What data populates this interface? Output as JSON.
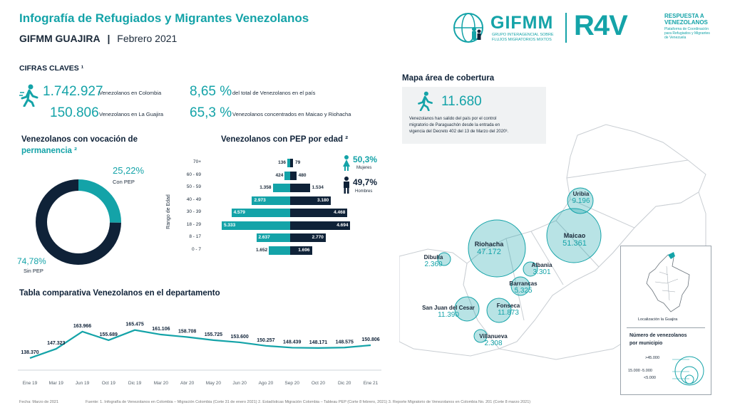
{
  "header": {
    "title": "Infografía de Refugiados y Migrantes Venezolanos",
    "org": "GIFMM GUAJIRA",
    "sep": "|",
    "date": "Febrero 2021",
    "gifmm_logo": "GIFMM",
    "gifmm_sub1": "GRUPO INTERAGENCIAL SOBRE",
    "gifmm_sub2": "FLUJOS MIGRATORIOS MIXTOS",
    "r4v_logo": "R4V",
    "r4v_t1": "RESPUESTA A",
    "r4v_t2": "VENEZOLANOS",
    "r4v_s1": "Plataforma de Coordinación",
    "r4v_s2": "para Refugiados y Migrantes",
    "r4v_s3": "de Venezuela"
  },
  "key_figures": {
    "title": "CIFRAS CLAVES ¹",
    "colombia_value": "1.742.927",
    "colombia_label": "Venezolanos en Colombia",
    "guajira_value": "150.806",
    "guajira_label": "Venezolanos en La Guajira",
    "pct_total_value": "8,65 %",
    "pct_total_label": "del total de Venezolanos en el país",
    "pct_maicao_value": "65,3 %",
    "pct_maicao_label": "Venezolanos concentrados en Maicao y Riohacha"
  },
  "permanence": {
    "title_1": "Venezolanos con vocación de",
    "title_2": "permanencia ²",
    "pep_pct": "25,22%",
    "pep_label": "Con PEP",
    "no_pep_pct": "74,78%",
    "no_pep_label": "Sin PEP",
    "pep_fraction": 0.2522,
    "colors": {
      "pep": "#14a3a8",
      "no_pep": "#0f2238"
    }
  },
  "pep_age": {
    "title": "Venezolanos con PEP por edad ²",
    "axis_label": "Rango de Edad",
    "rows": [
      {
        "age": "70+",
        "women": 136,
        "men": 79,
        "women_label": "136",
        "men_label": "79"
      },
      {
        "age": "60 - 69",
        "women": 424,
        "men": 480,
        "women_label": "424",
        "men_label": "480"
      },
      {
        "age": "50 - 59",
        "women": 1358,
        "men": 1534,
        "women_label": "1.358",
        "men_label": "1.534"
      },
      {
        "age": "40 - 49",
        "women": 2973,
        "men": 3180,
        "women_label": "2.973",
        "men_label": "3.180"
      },
      {
        "age": "30 - 39",
        "women": 4579,
        "men": 4468,
        "women_label": "4.579",
        "men_label": "4.468"
      },
      {
        "age": "18 - 29",
        "women": 5333,
        "men": 4694,
        "women_label": "5.333",
        "men_label": "4.694"
      },
      {
        "age": "8 - 17",
        "women": 2637,
        "men": 2770,
        "women_label": "2.637",
        "men_label": "2.770"
      },
      {
        "age": "0 - 7",
        "women": 1652,
        "men": 1696,
        "women_label": "1.652",
        "men_label": "1.696"
      }
    ],
    "women_pct": "50,3%",
    "women_label": "Mujeres",
    "men_pct": "49,7%",
    "men_label": "Hombres",
    "colors": {
      "women": "#14a3a8",
      "men": "#0f2238"
    }
  },
  "chart_data": {
    "type": "line",
    "title": "Tabla comparativa Venezolanos en el departamento",
    "x": [
      "Ene 19",
      "Mar 19",
      "Jun 19",
      "Oct 19",
      "Dic 19",
      "Mar 20",
      "Abr 20",
      "May 20",
      "Jun 20",
      "Ago 20",
      "Sep 20",
      "Oct 20",
      "Dic 20",
      "Ene 21"
    ],
    "values": [
      138370,
      147323,
      163966,
      155689,
      165475,
      161106,
      158708,
      155725,
      153600,
      150257,
      148439,
      148171,
      148575,
      150806
    ],
    "labels": [
      "138.370",
      "147.323",
      "163.966",
      "155.689",
      "165.475",
      "161.106",
      "158.708",
      "155.725",
      "153.600",
      "150.257",
      "148.439",
      "148.171",
      "148.575",
      "150.806"
    ],
    "color": "#14a3a8"
  },
  "coverage": {
    "title": "Mapa área de cobertura",
    "value": "11.680",
    "text_1": "Venezolanos han salido del país por el control",
    "text_2": "migratorio de Paraguachón desde la entrada en",
    "text_3": "vigencia del Decreto 402 del 13 de Marzo del 2020³.",
    "municipalities": [
      {
        "name": "Uribia",
        "value": "9.196"
      },
      {
        "name": "Riohacha",
        "value": "47.172"
      },
      {
        "name": "Maicao",
        "value": "51.361"
      },
      {
        "name": "Dibulla",
        "value": "2.360"
      },
      {
        "name": "Albania",
        "value": "3.301"
      },
      {
        "name": "Barrancas",
        "value": "5.325"
      },
      {
        "name": "San Juan del Cesar",
        "value": "11.390"
      },
      {
        "name": "Fonseca",
        "value": "11.873"
      },
      {
        "name": "Villanueva",
        "value": "2.308"
      }
    ],
    "inset_caption": "Localización  la Guajira",
    "legend_title_1": "Número de venezolanos",
    "legend_title_2": "por municipio",
    "legend_l1": ">45.000",
    "legend_l2": "15.000 -5.000",
    "legend_l3": "<5.000"
  },
  "footer": {
    "date": "Fecha: Marzo de 2021",
    "sources": "Fuente: 1. Infografía de Venezolanos en Colombia – Migración Colombia (Corte 31 de enero 2021)   2. Estadísticas Migración Colombia – Tableau PEP (Corte 8 febrero, 2021)   3. Reporte Migratorio de Venezolanos en Colombia No. 201 (Corte 8 marzo 2021)"
  }
}
